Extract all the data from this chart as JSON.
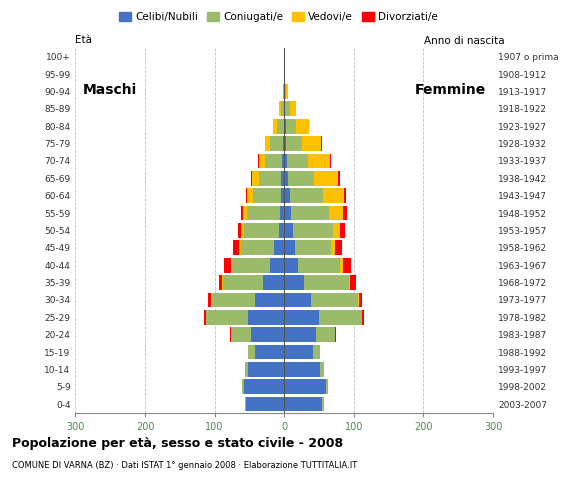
{
  "age_groups": [
    "0-4",
    "5-9",
    "10-14",
    "15-19",
    "20-24",
    "25-29",
    "30-34",
    "35-39",
    "40-44",
    "45-49",
    "50-54",
    "55-59",
    "60-64",
    "65-69",
    "70-74",
    "75-79",
    "80-84",
    "85-89",
    "90-94",
    "95-99",
    "100+"
  ],
  "birth_years": [
    "2003-2007",
    "1998-2002",
    "1993-1997",
    "1988-1992",
    "1983-1987",
    "1978-1982",
    "1973-1977",
    "1968-1972",
    "1963-1967",
    "1958-1962",
    "1953-1957",
    "1948-1952",
    "1943-1947",
    "1938-1942",
    "1933-1937",
    "1928-1932",
    "1923-1927",
    "1918-1922",
    "1913-1917",
    "1908-1912",
    "1907 o prima"
  ],
  "males": {
    "celibi": [
      55,
      58,
      52,
      42,
      48,
      52,
      42,
      30,
      20,
      14,
      8,
      6,
      5,
      4,
      3,
      2,
      1,
      0,
      0,
      0,
      0
    ],
    "coniugati": [
      2,
      3,
      5,
      10,
      28,
      60,
      62,
      58,
      55,
      48,
      50,
      48,
      40,
      32,
      25,
      18,
      10,
      5,
      2,
      0,
      0
    ],
    "vedovi": [
      0,
      0,
      0,
      0,
      0,
      0,
      1,
      1,
      2,
      3,
      4,
      5,
      8,
      10,
      8,
      8,
      5,
      2,
      0,
      0,
      0
    ],
    "divorziati": [
      0,
      0,
      0,
      0,
      2,
      3,
      4,
      5,
      10,
      8,
      5,
      3,
      2,
      1,
      1,
      0,
      0,
      0,
      0,
      0,
      0
    ]
  },
  "females": {
    "nubili": [
      55,
      60,
      52,
      42,
      45,
      50,
      38,
      28,
      20,
      15,
      12,
      10,
      8,
      5,
      4,
      3,
      2,
      1,
      0,
      0,
      0
    ],
    "coniugate": [
      2,
      3,
      5,
      10,
      28,
      62,
      68,
      65,
      60,
      52,
      58,
      55,
      48,
      38,
      30,
      22,
      15,
      8,
      3,
      1,
      0
    ],
    "vedove": [
      0,
      0,
      0,
      0,
      0,
      0,
      1,
      2,
      4,
      6,
      10,
      20,
      30,
      35,
      32,
      28,
      18,
      8,
      2,
      0,
      0
    ],
    "divorziate": [
      0,
      0,
      0,
      0,
      2,
      3,
      5,
      8,
      12,
      10,
      8,
      5,
      3,
      2,
      1,
      1,
      0,
      0,
      0,
      0,
      0
    ]
  },
  "colors": {
    "celibi": "#4472C4",
    "coniugati": "#9BBB6B",
    "vedovi": "#FFC000",
    "divorziati": "#FF0000"
  },
  "xlim": 300,
  "title": "Popolazione per età, sesso e stato civile - 2008",
  "subtitle": "COMUNE DI VARNA (BZ) · Dati ISTAT 1° gennaio 2008 · Elaborazione TUTTITALIA.IT",
  "legend_labels": [
    "Celibi/Nubili",
    "Coniugati/e",
    "Vedovi/e",
    "Divorziati/e"
  ],
  "label_eta": "Età",
  "label_anno": "Anno di nascita",
  "label_maschi": "Maschi",
  "label_femmine": "Femmine",
  "bg_color": "#FFFFFF",
  "grid_color": "#C0C0C0"
}
